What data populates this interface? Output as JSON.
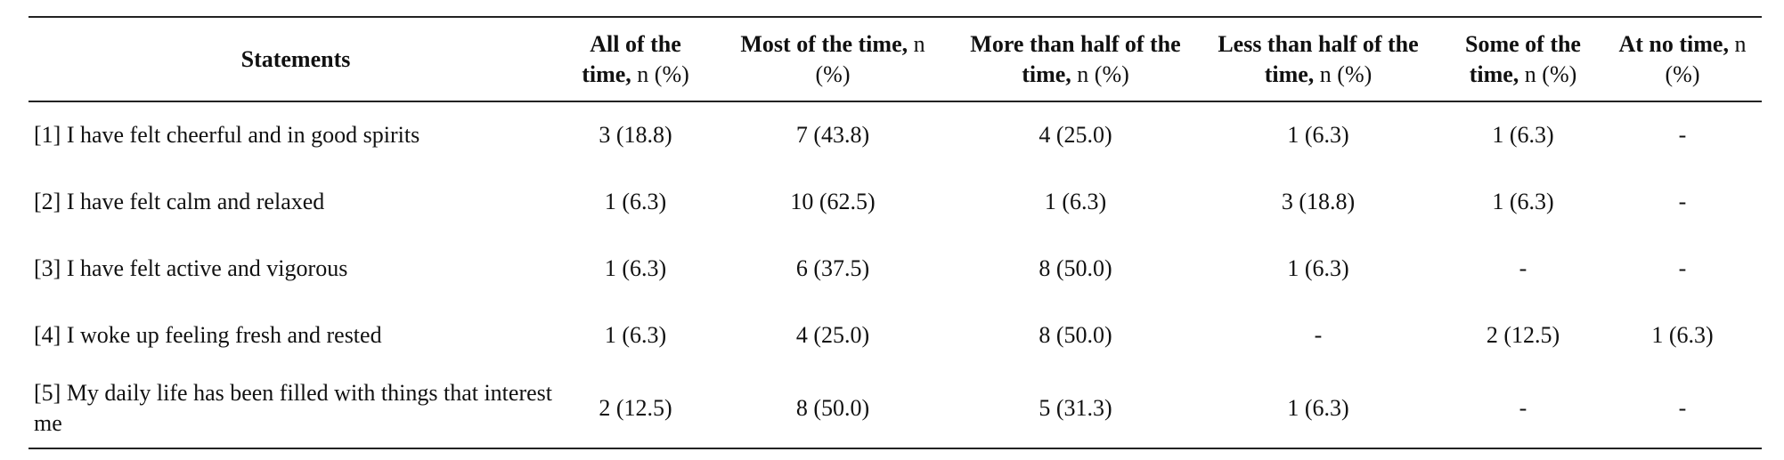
{
  "table": {
    "header": [
      {
        "bold": "Statements"
      },
      {
        "bold": "All of the time,",
        "normal": "n (%)"
      },
      {
        "bold": "Most of the time,",
        "normal": "n (%)"
      },
      {
        "bold": "More than half of the time,",
        "normal": "n (%)"
      },
      {
        "bold": "Less than half of the time,",
        "normal": "n (%)"
      },
      {
        "bold": "Some of the time,",
        "normal": "n (%)"
      },
      {
        "bold": "At no time,",
        "normal": "n (%)"
      }
    ],
    "rows": [
      [
        "[1] I have felt cheerful and in good spirits",
        "3 (18.8)",
        "7 (43.8)",
        "4 (25.0)",
        "1 (6.3)",
        "1 (6.3)",
        "-"
      ],
      [
        "[2] I have felt calm and relaxed",
        "1 (6.3)",
        "10 (62.5)",
        "1 (6.3)",
        "3 (18.8)",
        "1 (6.3)",
        "-"
      ],
      [
        "[3] I have felt active and vigorous",
        "1 (6.3)",
        "6 (37.5)",
        "8 (50.0)",
        "1 (6.3)",
        "-",
        "-"
      ],
      [
        "[4] I woke up feeling fresh and rested",
        "1 (6.3)",
        "4 (25.0)",
        "8 (50.0)",
        "-",
        "2 (12.5)",
        "1 (6.3)"
      ],
      [
        "[5] My daily life has been filled with things that interest me",
        "2 (12.5)",
        "8 (50.0)",
        "5 (31.3)",
        "1 (6.3)",
        "-",
        "-"
      ]
    ]
  }
}
